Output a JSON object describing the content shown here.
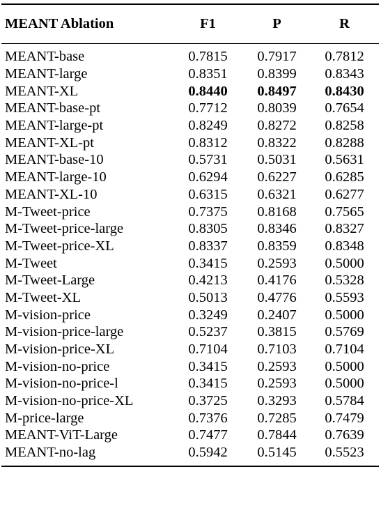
{
  "table": {
    "headers": [
      "MEANT Ablation",
      "F1",
      "P",
      "R"
    ],
    "rows": [
      {
        "name": "MEANT-base",
        "f1": "0.7815",
        "p": "0.7917",
        "r": "0.7812",
        "bold": false
      },
      {
        "name": "MEANT-large",
        "f1": "0.8351",
        "p": "0.8399",
        "r": "0.8343",
        "bold": false
      },
      {
        "name": "MEANT-XL",
        "f1": "0.8440",
        "p": "0.8497",
        "r": "0.8430",
        "bold": true
      },
      {
        "name": "MEANT-base-pt",
        "f1": "0.7712",
        "p": "0.8039",
        "r": "0.7654",
        "bold": false
      },
      {
        "name": "MEANT-large-pt",
        "f1": "0.8249",
        "p": "0.8272",
        "r": "0.8258",
        "bold": false
      },
      {
        "name": "MEANT-XL-pt",
        "f1": "0.8312",
        "p": "0.8322",
        "r": "0.8288",
        "bold": false
      },
      {
        "name": "MEANT-base-10",
        "f1": "0.5731",
        "p": "0.5031",
        "r": "0.5631",
        "bold": false
      },
      {
        "name": "MEANT-large-10",
        "f1": "0.6294",
        "p": "0.6227",
        "r": "0.6285",
        "bold": false
      },
      {
        "name": "MEANT-XL-10",
        "f1": "0.6315",
        "p": "0.6321",
        "r": "0.6277",
        "bold": false
      },
      {
        "name": "M-Tweet-price",
        "f1": "0.7375",
        "p": "0.8168",
        "r": "0.7565",
        "bold": false
      },
      {
        "name": "M-Tweet-price-large",
        "f1": "0.8305",
        "p": "0.8346",
        "r": "0.8327",
        "bold": false
      },
      {
        "name": "M-Tweet-price-XL",
        "f1": "0.8337",
        "p": "0.8359",
        "r": "0.8348",
        "bold": false
      },
      {
        "name": "M-Tweet",
        "f1": "0.3415",
        "p": "0.2593",
        "r": "0.5000",
        "bold": false
      },
      {
        "name": "M-Tweet-Large",
        "f1": "0.4213",
        "p": "0.4176",
        "r": "0.5328",
        "bold": false
      },
      {
        "name": "M-Tweet-XL",
        "f1": "0.5013",
        "p": "0.4776",
        "r": "0.5593",
        "bold": false
      },
      {
        "name": "M-vision-price",
        "f1": "0.3249",
        "p": "0.2407",
        "r": "0.5000",
        "bold": false
      },
      {
        "name": "M-vision-price-large",
        "f1": "0.5237",
        "p": "0.3815",
        "r": "0.5769",
        "bold": false
      },
      {
        "name": "M-vision-price-XL",
        "f1": "0.7104",
        "p": "0.7103",
        "r": "0.7104",
        "bold": false
      },
      {
        "name": "M-vision-no-price",
        "f1": "0.3415",
        "p": "0.2593",
        "r": "0.5000",
        "bold": false
      },
      {
        "name": "M-vision-no-price-l",
        "f1": "0.3415",
        "p": "0.2593",
        "r": "0.5000",
        "bold": false
      },
      {
        "name": "M-vision-no-price-XL",
        "f1": "0.3725",
        "p": "0.3293",
        "r": "0.5784",
        "bold": false
      },
      {
        "name": "M-price-large",
        "f1": "0.7376",
        "p": "0.7285",
        "r": "0.7479",
        "bold": false
      },
      {
        "name": "MEANT-ViT-Large",
        "f1": "0.7477",
        "p": "0.7844",
        "r": "0.7639",
        "bold": false
      },
      {
        "name": "MEANT-no-lag",
        "f1": "0.5942",
        "p": "0.5145",
        "r": "0.5523",
        "bold": false
      }
    ]
  }
}
